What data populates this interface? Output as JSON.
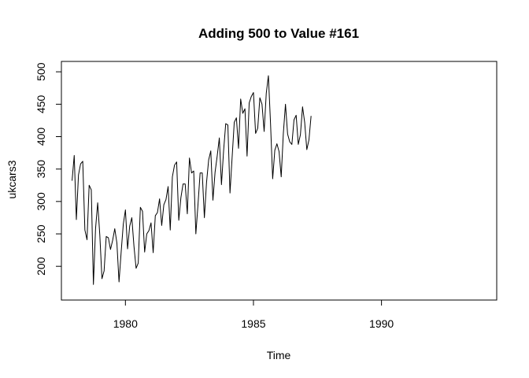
{
  "chart_data": {
    "type": "line",
    "title": "Adding 500 to Value #161",
    "xlabel": "Time",
    "ylabel": "ukcars3",
    "xlim": [
      1977.5,
      1994.5
    ],
    "ylim": [
      148,
      516
    ],
    "x_ticks": [
      1980,
      1985,
      1990
    ],
    "x_tick_labels": [
      "1980",
      "1985",
      "1990"
    ],
    "y_ticks": [
      200,
      250,
      300,
      350,
      400,
      450,
      500
    ],
    "y_tick_labels": [
      "200",
      "250",
      "300",
      "350",
      "400",
      "450",
      "500"
    ],
    "grid": false,
    "legend": "none",
    "line_color": "#000000",
    "series": [
      {
        "start": 1977.917,
        "frequency": 12,
        "values": [
          332,
          371,
          272,
          341,
          358,
          362,
          256,
          241,
          325,
          318,
          172,
          258,
          298,
          248,
          181,
          193,
          246,
          244,
          226,
          240,
          258,
          236,
          176,
          222,
          265,
          287,
          227,
          262,
          275,
          231,
          197,
          205,
          291,
          285,
          222,
          250,
          255,
          267,
          221,
          278,
          283,
          304,
          263,
          295,
          303,
          323,
          256,
          338,
          356,
          361,
          271,
          306,
          327,
          327,
          281,
          367,
          344,
          347,
          250,
          295,
          344,
          344,
          275,
          329,
          364,
          378,
          302,
          345,
          370,
          398,
          326,
          378,
          420,
          418,
          313,
          368,
          422,
          429,
          382,
          458,
          436,
          443,
          370,
          452,
          462,
          468,
          405,
          413,
          460,
          450,
          408,
          467,
          494,
          420,
          335,
          379,
          389,
          377,
          338,
          405,
          450,
          404,
          392,
          388,
          426,
          433,
          388,
          403,
          446,
          422,
          380,
          395,
          432
        ]
      }
    ]
  }
}
